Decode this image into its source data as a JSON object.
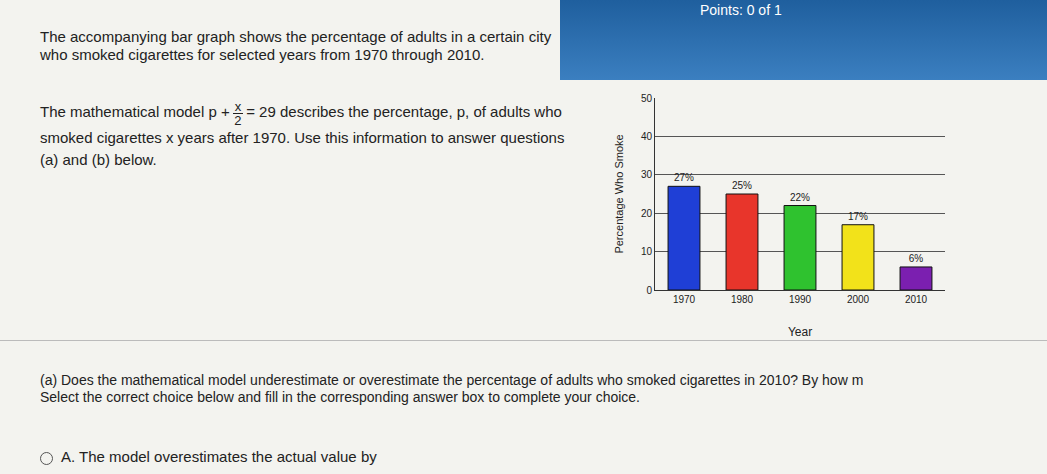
{
  "header": {
    "points": "Points: 0 of 1"
  },
  "intro": "The accompanying bar graph shows the percentage of adults in a certain city who smoked cigarettes for selected years from 1970 through 2010.",
  "model_sentence": {
    "before": "The mathematical model",
    "model": {
      "lhs": "p +",
      "numerator": "x",
      "denominator": "2",
      "rhs": "= 29"
    },
    "after": "describes the percentage, p, of adults who smoked cigarettes x years after 1970. Use this information to answer questions (a) and (b) below."
  },
  "question": {
    "text": "(a) Does the mathematical model underestimate or overestimate the percentage of adults who smoked cigarettes in 2010? By how m",
    "instruction": "Select the correct choice below and fill in the corresponding answer box to complete your choice."
  },
  "choices": [
    "A.  The model overestimates the actual value by"
  ],
  "chart_data": {
    "type": "bar",
    "x_label": "Year",
    "y_label": "Percentage Who Smoke",
    "categories": [
      "1970",
      "1980",
      "1990",
      "2000",
      "2010"
    ],
    "values": [
      27,
      25,
      22,
      17,
      6
    ],
    "value_labels": [
      "27%",
      "25%",
      "22%",
      "17%",
      "6%"
    ],
    "colors": [
      "#1f3fd6",
      "#e8352b",
      "#2fc22f",
      "#f2e21a",
      "#7b1fb0"
    ],
    "ylim": [
      0,
      50
    ],
    "yticks": [
      0,
      10,
      20,
      30,
      40,
      50
    ],
    "grid": true,
    "data_labels": true
  }
}
